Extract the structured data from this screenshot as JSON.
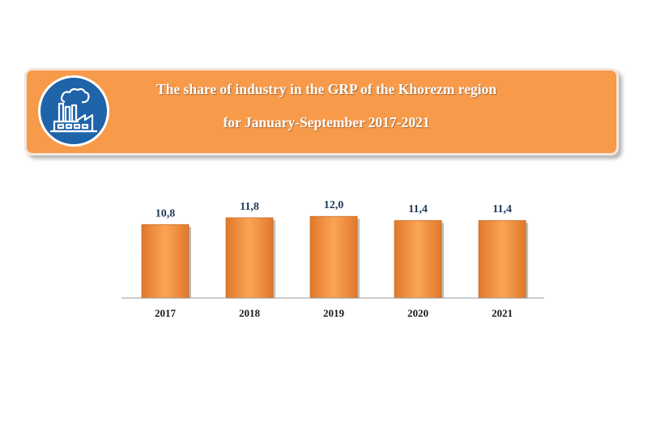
{
  "header": {
    "title_line1": "The share of industry in the GRP of the Khorezm region",
    "title_line2": "for January-September 2017-2021",
    "icon": "factory-icon",
    "banner_color": "#f79b4b",
    "icon_circle_color": "#1f63a8"
  },
  "chart_data": {
    "type": "bar",
    "categories": [
      "2017",
      "2018",
      "2019",
      "2020",
      "2021"
    ],
    "values": [
      10.8,
      11.8,
      12.0,
      11.4,
      11.4
    ],
    "value_labels": [
      "10,8",
      "11,8",
      "12,0",
      "11,4",
      "11,4"
    ],
    "bar_color": "#f79b4b",
    "ylim": [
      0,
      12.5
    ],
    "grid": false,
    "legend": "none"
  }
}
